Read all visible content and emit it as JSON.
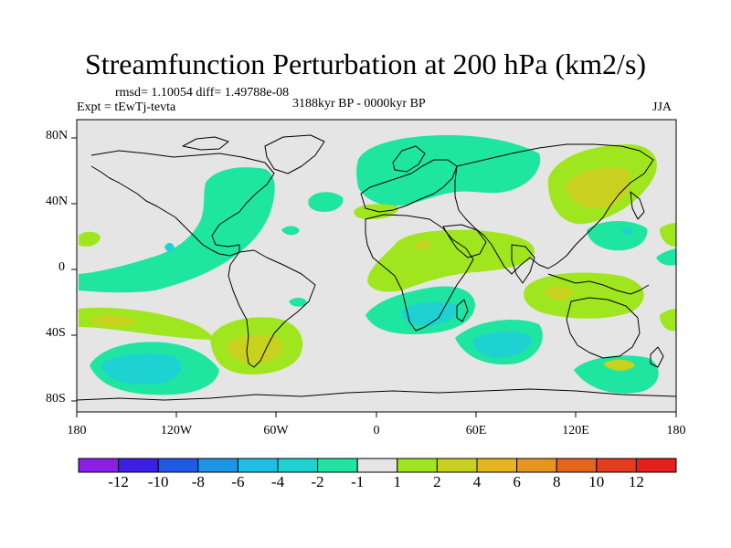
{
  "title": "Streamfunction Perturbation at 200 hPa (km2/s)",
  "stats": "rmsd= 1.10054  diff= 1.49788e-08",
  "experiment": "Expt = tEwTj-tevta",
  "period": "3188kyr BP - 0000kyr BP",
  "season": "JJA",
  "colors": {
    "background_field": "#e5e5e5",
    "level_neg2": "#1ee6a0",
    "level_neg4": "#1ed2d2",
    "level_pos2": "#a0e61e",
    "level_pos4": "#c8d21e",
    "coast": "#000000"
  },
  "map": {
    "lat_labels": [
      "80N",
      "40N",
      "0",
      "40S",
      "80S"
    ],
    "lon_labels": [
      "180",
      "120W",
      "60W",
      "0",
      "60E",
      "120E",
      "180"
    ]
  },
  "colorbar": {
    "labels": [
      "-12",
      "-10",
      "-8",
      "-6",
      "-4",
      "-2",
      "-1",
      "1",
      "2",
      "4",
      "6",
      "8",
      "10",
      "12"
    ],
    "colors": [
      "#8c1ee6",
      "#3c1ee6",
      "#1e5ae6",
      "#1e96e6",
      "#1ebee6",
      "#1ed2d2",
      "#1ee6a0",
      "#e5e5e5",
      "#a0e61e",
      "#c8d21e",
      "#e6b41e",
      "#e6961e",
      "#e6641e",
      "#e63c1e",
      "#e61e1e"
    ]
  }
}
